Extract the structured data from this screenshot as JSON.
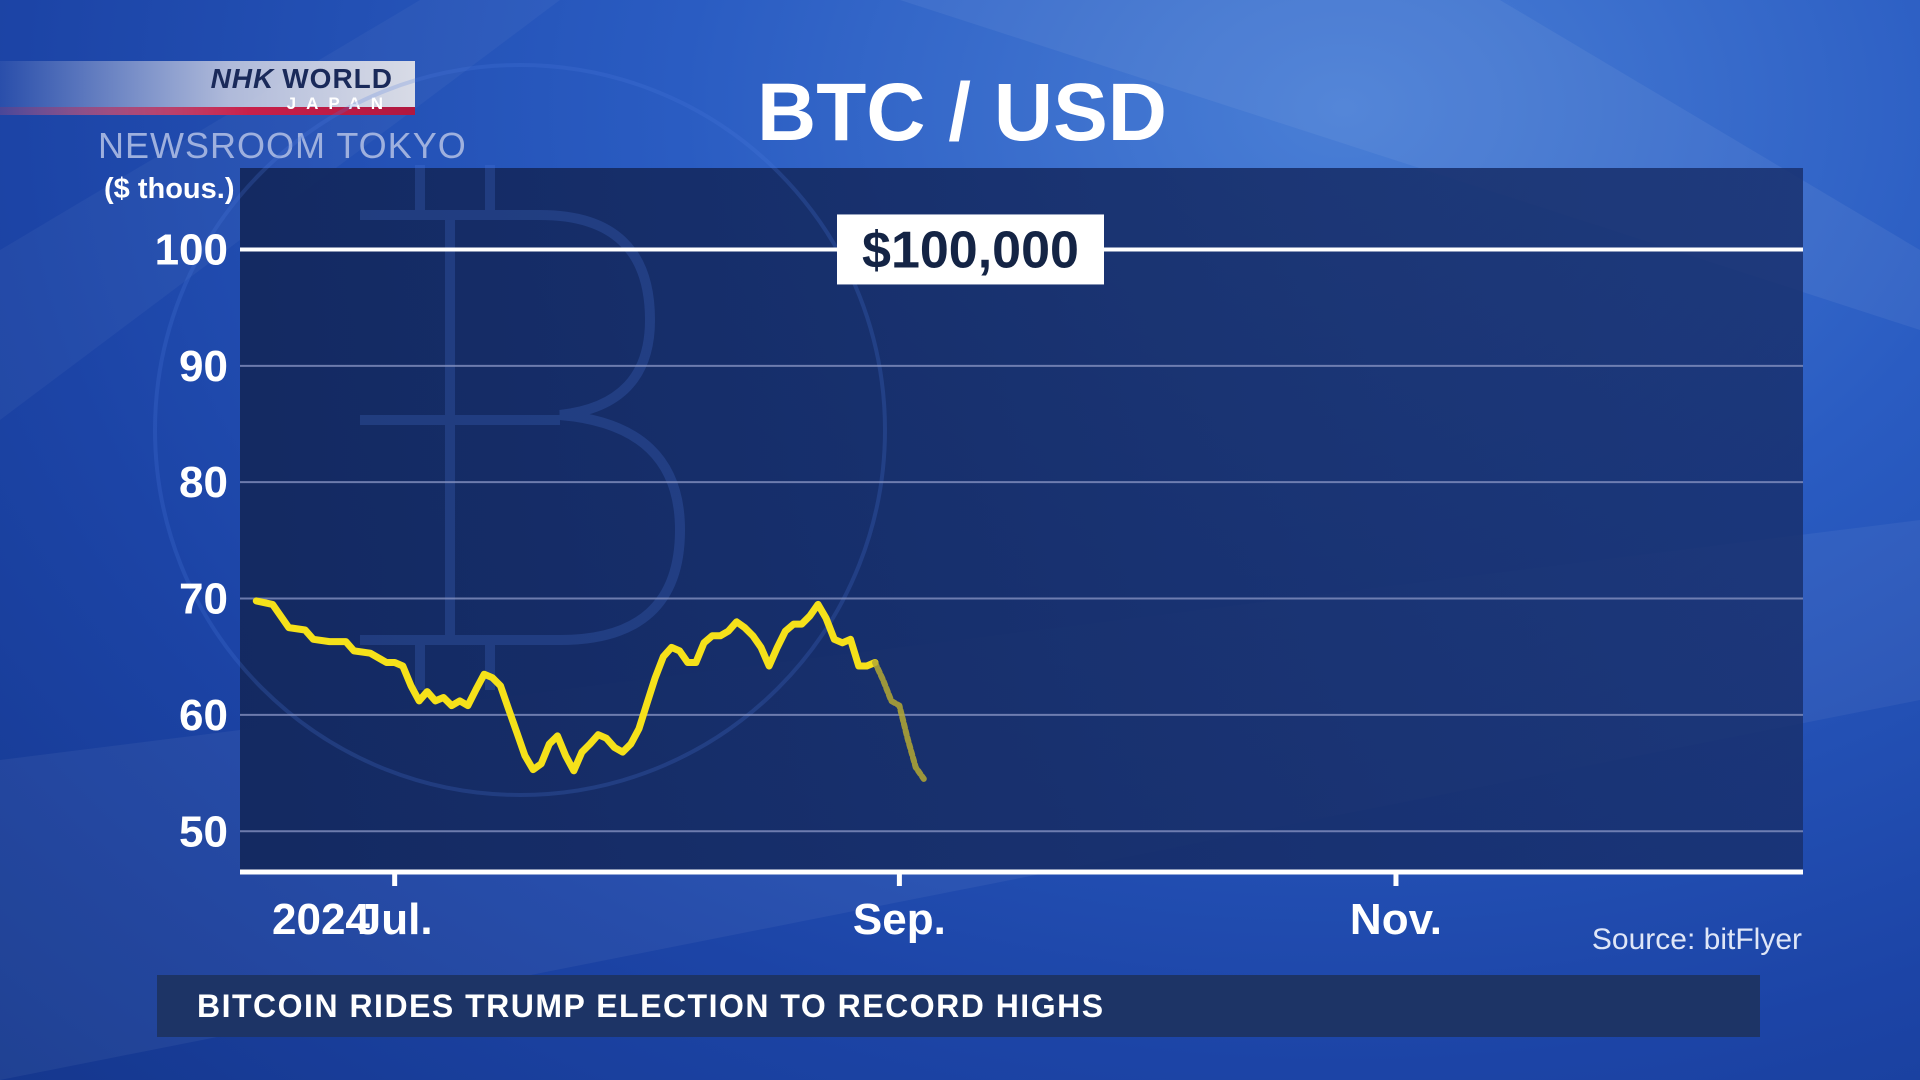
{
  "broadcaster": {
    "logo_text": "NHK",
    "logo_world": "WORLD",
    "logo_sub": "JAPAN",
    "program": "NEWSROOM TOKYO"
  },
  "ticker": {
    "headline": "BITCOIN RIDES TRUMP ELECTION TO RECORD HIGHS"
  },
  "chart_data": {
    "type": "line",
    "title": "BTC / USD",
    "ylabel": "($ thous.)",
    "ylim": [
      46.5,
      107
    ],
    "yticks": [
      50,
      60,
      70,
      80,
      90,
      100
    ],
    "xlim": [
      "2024-06-12",
      "2024-12-21"
    ],
    "xticks": [
      {
        "date": "2024-07-01",
        "label": "Jul."
      },
      {
        "date": "2024-09-01",
        "label": "Sep."
      },
      {
        "date": "2024-11-01",
        "label": "Nov."
      }
    ],
    "year_label": "2024",
    "reference_line": {
      "value": 100,
      "label": "$100,000"
    },
    "source": "Source: bitFlyer",
    "grid": true,
    "colors": {
      "series": "#f5e11a",
      "series_tail": "#b4a832",
      "reference": "#ffffff",
      "grid": "#8b97c6"
    },
    "series": [
      {
        "values": [
          [
            "2024-06-14",
            69.8
          ],
          [
            "2024-06-16",
            69.5
          ],
          [
            "2024-06-17",
            68.5
          ],
          [
            "2024-06-18",
            67.5
          ],
          [
            "2024-06-20",
            67.3
          ],
          [
            "2024-06-21",
            66.5
          ],
          [
            "2024-06-23",
            66.3
          ],
          [
            "2024-06-25",
            66.3
          ],
          [
            "2024-06-26",
            65.5
          ],
          [
            "2024-06-28",
            65.3
          ],
          [
            "2024-06-30",
            64.5
          ],
          [
            "2024-07-01",
            64.5
          ],
          [
            "2024-07-02",
            64.2
          ],
          [
            "2024-07-03",
            62.5
          ],
          [
            "2024-07-04",
            61.2
          ],
          [
            "2024-07-05",
            62.0
          ],
          [
            "2024-07-06",
            61.2
          ],
          [
            "2024-07-07",
            61.5
          ],
          [
            "2024-07-08",
            60.8
          ],
          [
            "2024-07-09",
            61.2
          ],
          [
            "2024-07-10",
            60.8
          ],
          [
            "2024-07-11",
            62.2
          ],
          [
            "2024-07-12",
            63.5
          ],
          [
            "2024-07-13",
            63.2
          ],
          [
            "2024-07-14",
            62.5
          ],
          [
            "2024-07-15",
            60.5
          ],
          [
            "2024-07-16",
            58.5
          ],
          [
            "2024-07-17",
            56.5
          ],
          [
            "2024-07-18",
            55.3
          ],
          [
            "2024-07-19",
            55.8
          ],
          [
            "2024-07-20",
            57.5
          ],
          [
            "2024-07-21",
            58.2
          ],
          [
            "2024-07-22",
            56.5
          ],
          [
            "2024-07-23",
            55.2
          ],
          [
            "2024-07-24",
            56.8
          ],
          [
            "2024-07-25",
            57.5
          ],
          [
            "2024-07-26",
            58.3
          ],
          [
            "2024-07-27",
            58.0
          ],
          [
            "2024-07-28",
            57.2
          ],
          [
            "2024-07-29",
            56.8
          ],
          [
            "2024-07-30",
            57.5
          ],
          [
            "2024-07-31",
            58.8
          ],
          [
            "2024-08-01",
            61.0
          ],
          [
            "2024-08-02",
            63.2
          ],
          [
            "2024-08-03",
            65.0
          ],
          [
            "2024-08-04",
            65.8
          ],
          [
            "2024-08-05",
            65.5
          ],
          [
            "2024-08-06",
            64.5
          ],
          [
            "2024-08-07",
            64.5
          ],
          [
            "2024-08-08",
            66.2
          ],
          [
            "2024-08-09",
            66.8
          ],
          [
            "2024-08-10",
            66.8
          ],
          [
            "2024-08-11",
            67.2
          ],
          [
            "2024-08-12",
            68.0
          ],
          [
            "2024-08-13",
            67.5
          ],
          [
            "2024-08-14",
            66.8
          ],
          [
            "2024-08-15",
            65.8
          ],
          [
            "2024-08-16",
            64.2
          ],
          [
            "2024-08-17",
            65.8
          ],
          [
            "2024-08-18",
            67.2
          ],
          [
            "2024-08-19",
            67.8
          ],
          [
            "2024-08-20",
            67.8
          ],
          [
            "2024-08-21",
            68.5
          ],
          [
            "2024-08-22",
            69.5
          ],
          [
            "2024-08-23",
            68.3
          ],
          [
            "2024-08-24",
            66.5
          ],
          [
            "2024-08-25",
            66.2
          ],
          [
            "2024-08-26",
            66.5
          ],
          [
            "2024-08-27",
            64.2
          ],
          [
            "2024-08-28",
            64.2
          ],
          [
            "2024-08-29",
            64.5
          ]
        ]
      },
      {
        "values": [
          [
            "2024-08-29",
            64.5
          ],
          [
            "2024-08-30",
            63.0
          ],
          [
            "2024-08-31",
            61.2
          ],
          [
            "2024-09-01",
            60.8
          ],
          [
            "2024-09-02",
            58.0
          ],
          [
            "2024-09-03",
            55.5
          ],
          [
            "2024-09-04",
            54.5
          ]
        ]
      }
    ]
  }
}
